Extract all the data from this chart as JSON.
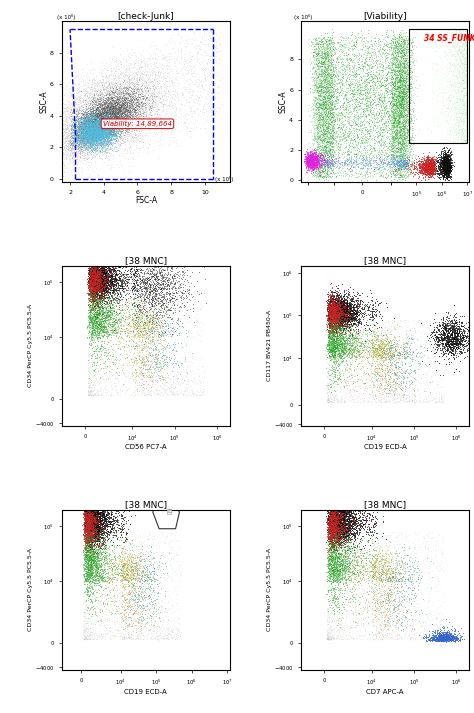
{
  "title_top_left": "[check-Junk]",
  "title_top_right": "[Viability]",
  "title_mid_left": "[38 MNC]",
  "title_mid_right": "[38 MNC]",
  "title_bot_left": "[38 MNC]",
  "title_bot_right": "[38 MNC]",
  "viability_text": "Viability: 14,89,664",
  "viability_red_label": "34 SS_FUNK",
  "xlabel_tl": "FSC-A",
  "ylabel_tl": "SSC-A",
  "ylabel_tl_unit": "x 10⁶",
  "xlabel_tl_unit": "x 10⁶",
  "ylabel_tr_unit": "x 10⁶",
  "xlabel_ml": "CD56 PC7-A",
  "ylabel_ml": "CD34 PerCP Cy5.5 PC5.5-A",
  "xlabel_mr": "CD19 ECD-A",
  "ylabel_mr": "CD117 BV421 PB450-A",
  "xlabel_bl": "CD19 ECD-A",
  "ylabel_bl": "CD34 PerCP Cy5.5 PC5.5-A",
  "xlabel_br": "CD7 APC-A",
  "ylabel_br": "CD34 PerCP Cy5.5 PC5.5-A",
  "bg_color": "#ffffff"
}
